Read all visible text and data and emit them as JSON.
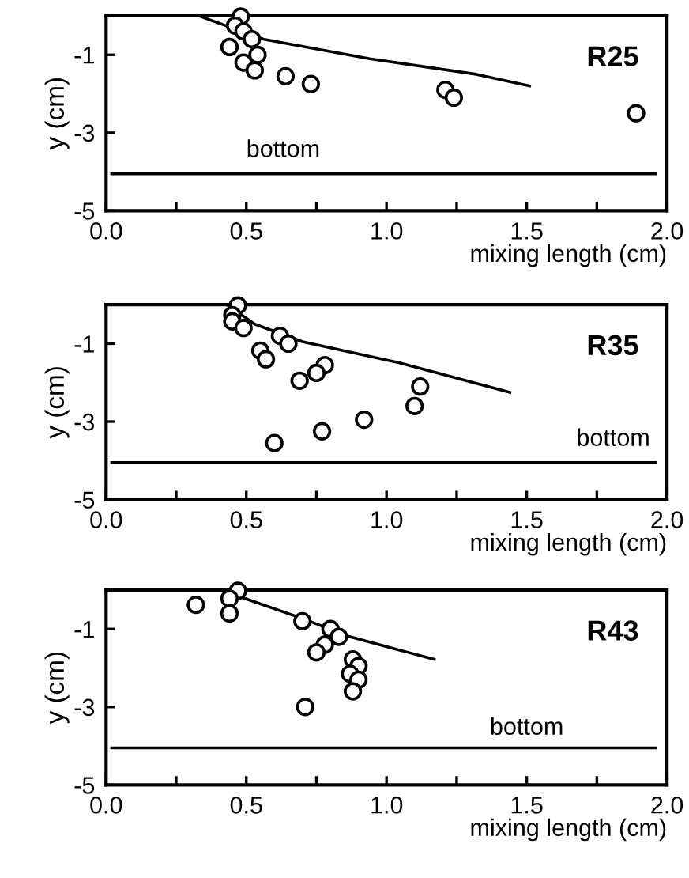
{
  "chart_data": [
    {
      "type": "scatter",
      "xlabel": "mixing length (cm)",
      "ylabel": "y (cm)",
      "xlim": [
        0,
        2
      ],
      "ylim": [
        -5,
        0
      ],
      "xticks": [
        {
          "value": 0,
          "label": "0.0"
        },
        {
          "value": 0.25,
          "label": null
        },
        {
          "value": 0.5,
          "label": "0.5"
        },
        {
          "value": 0.75,
          "label": null
        },
        {
          "value": 1,
          "label": "1.0"
        },
        {
          "value": 1.25,
          "label": null
        },
        {
          "value": 1.5,
          "label": "1.5"
        },
        {
          "value": 1.75,
          "label": null
        },
        {
          "value": 2,
          "label": "2.0"
        }
      ],
      "yticks": [
        -1,
        -3,
        -5
      ],
      "grid": false,
      "legend": false,
      "series": [
        {
          "marker": "circle",
          "color": "#000000",
          "x": [
            0.48,
            0.46,
            0.49,
            0.52,
            0.44,
            0.54,
            0.49,
            0.53,
            0.64,
            0.73,
            1.21,
            1.24,
            1.89
          ],
          "values": [
            -0.02,
            -0.25,
            -0.4,
            -0.6,
            -0.8,
            -1.0,
            -1.2,
            -1.4,
            -1.55,
            -1.75,
            -1.9,
            -2.1,
            -2.5
          ]
        },
        {
          "type": "line",
          "marker": "none",
          "color": "#000000",
          "x": [
            0.33,
            0.56,
            0.94,
            1.32,
            1.51
          ],
          "values": [
            0.0,
            -0.6,
            -1.1,
            -1.5,
            -1.8
          ]
        }
      ],
      "ref_lines": [
        {
          "axis": "y",
          "value": -4.05,
          "color": "#000000",
          "label": "bottom"
        }
      ],
      "annotations": [
        "R25"
      ]
    },
    {
      "type": "scatter",
      "xlabel": "mixing length (cm)",
      "ylabel": "y (cm)",
      "xlim": [
        0,
        2
      ],
      "ylim": [
        -5,
        0
      ],
      "xticks": [
        {
          "value": 0,
          "label": "0.0"
        },
        {
          "value": 0.25,
          "label": null
        },
        {
          "value": 0.5,
          "label": "0.5"
        },
        {
          "value": 0.75,
          "label": null
        },
        {
          "value": 1,
          "label": "1.0"
        },
        {
          "value": 1.25,
          "label": null
        },
        {
          "value": 1.5,
          "label": "1.5"
        },
        {
          "value": 1.75,
          "label": null
        },
        {
          "value": 2,
          "label": "2.0"
        }
      ],
      "yticks": [
        -1,
        -3,
        -5
      ],
      "grid": false,
      "legend": false,
      "series": [
        {
          "marker": "circle",
          "color": "#000000",
          "x": [
            0.47,
            0.45,
            0.45,
            0.49,
            0.62,
            0.65,
            0.55,
            0.57,
            0.78,
            0.75,
            0.69,
            1.12,
            1.1,
            0.92,
            0.77,
            0.6
          ],
          "values": [
            -0.02,
            -0.27,
            -0.43,
            -0.6,
            -0.8,
            -1.0,
            -1.18,
            -1.4,
            -1.55,
            -1.75,
            -1.95,
            -2.1,
            -2.6,
            -2.95,
            -3.25,
            -3.55
          ]
        },
        {
          "type": "line",
          "marker": "none",
          "color": "#000000",
          "x": [
            0.43,
            0.53,
            0.7,
            1.05,
            1.44
          ],
          "values": [
            0.0,
            -0.5,
            -0.95,
            -1.5,
            -2.25
          ]
        }
      ],
      "ref_lines": [
        {
          "axis": "y",
          "value": -4.05,
          "color": "#000000",
          "label": "bottom"
        }
      ],
      "annotations": [
        "R35"
      ]
    },
    {
      "type": "scatter",
      "xlabel": "mixing length (cm)",
      "ylabel": "y (cm)",
      "xlim": [
        0,
        2
      ],
      "ylim": [
        -5,
        0
      ],
      "xticks": [
        {
          "value": 0,
          "label": "0.0"
        },
        {
          "value": 0.25,
          "label": null
        },
        {
          "value": 0.5,
          "label": "0.5"
        },
        {
          "value": 0.75,
          "label": null
        },
        {
          "value": 1,
          "label": "1.0"
        },
        {
          "value": 1.25,
          "label": null
        },
        {
          "value": 1.5,
          "label": "1.5"
        },
        {
          "value": 1.75,
          "label": null
        },
        {
          "value": 2,
          "label": "2.0"
        }
      ],
      "yticks": [
        -1,
        -3,
        -5
      ],
      "grid": false,
      "legend": false,
      "series": [
        {
          "marker": "circle",
          "color": "#000000",
          "x": [
            0.47,
            0.44,
            0.32,
            0.44,
            0.7,
            0.8,
            0.83,
            0.78,
            0.75,
            0.88,
            0.9,
            0.87,
            0.9,
            0.88,
            0.71
          ],
          "values": [
            -0.02,
            -0.22,
            -0.38,
            -0.6,
            -0.8,
            -1.0,
            -1.2,
            -1.4,
            -1.6,
            -1.78,
            -1.95,
            -2.15,
            -2.3,
            -2.6,
            -3.0
          ]
        },
        {
          "type": "line",
          "marker": "none",
          "color": "#000000",
          "x": [
            0.48,
            0.7,
            0.87,
            1.17
          ],
          "values": [
            -0.18,
            -0.73,
            -1.2,
            -1.78
          ]
        }
      ],
      "ref_lines": [
        {
          "axis": "y",
          "value": -4.05,
          "color": "#000000",
          "label": "bottom"
        }
      ],
      "annotations": [
        "R43"
      ]
    }
  ]
}
